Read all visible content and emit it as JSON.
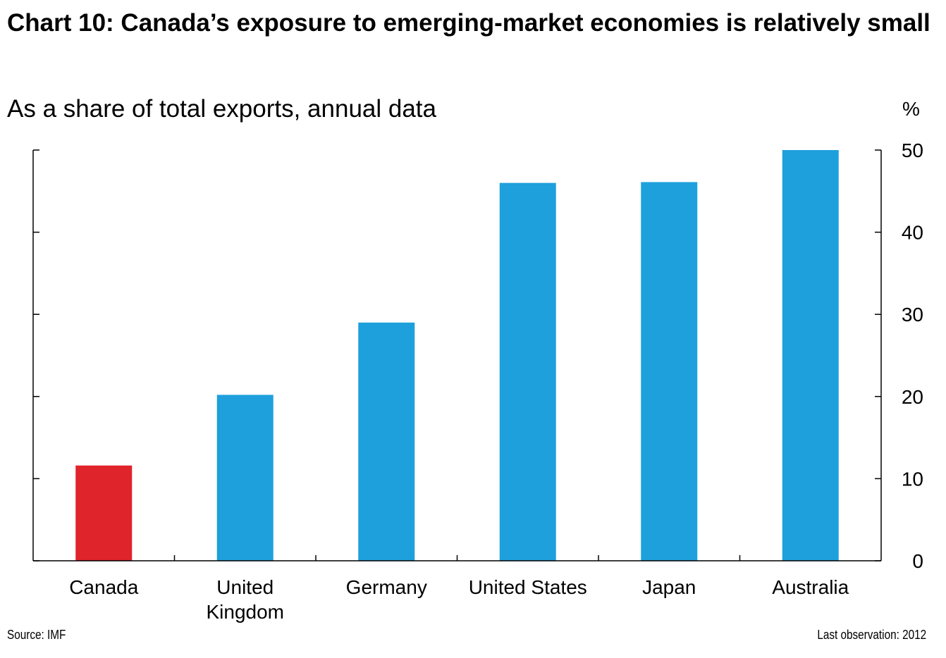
{
  "page": {
    "title": "Chart 10: Canada’s exposure to emerging-market economies is relatively small",
    "subtitle": "As a share of total exports, annual data",
    "unit": "%",
    "source": "Source: IMF",
    "last_observation": "Last observation: 2012"
  },
  "chart_data": {
    "type": "bar",
    "title": "Chart 10: Canada’s exposure to emerging-market economies is relatively small",
    "subtitle": "As a share of total exports, annual data",
    "categories": [
      "Canada",
      "United Kingdom",
      "Germany",
      "United States",
      "Japan",
      "Australia"
    ],
    "category_labels": [
      [
        "Canada"
      ],
      [
        "United",
        "Kingdom"
      ],
      [
        "Germany"
      ],
      [
        "United States"
      ],
      [
        "Japan"
      ],
      [
        "Australia"
      ]
    ],
    "values": [
      11.6,
      20.2,
      29.0,
      46.0,
      46.1,
      50.0
    ],
    "colors": [
      "#e0242b",
      "#1ea0dc",
      "#1ea0dc",
      "#1ea0dc",
      "#1ea0dc",
      "#1ea0dc"
    ],
    "ylim": [
      0,
      50
    ],
    "yticks": [
      0,
      10,
      20,
      30,
      40,
      50
    ],
    "y_axis_side": "right",
    "ylabel": "%",
    "xlabel": "",
    "grid": false,
    "legend": "none"
  }
}
